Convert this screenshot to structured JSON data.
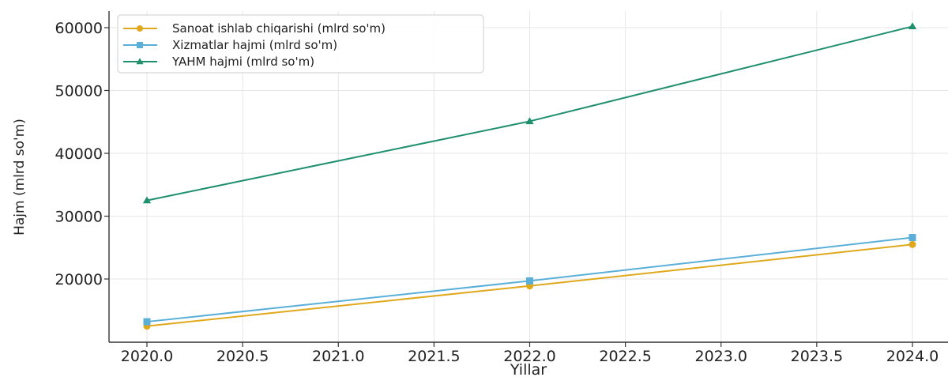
{
  "chart_data": {
    "type": "line",
    "title": "",
    "xlabel": "Yillar",
    "ylabel": "Hajm (mlrd so'm)",
    "xlim": [
      1999.9,
      2024.1
    ],
    "ylim": [
      10000,
      62500
    ],
    "x_ticks": [
      "2020.0",
      "2020.5",
      "2021.0",
      "2021.5",
      "2022.0",
      "2022.5",
      "2023.0",
      "2023.5",
      "2024.0"
    ],
    "y_ticks": [
      "20000",
      "30000",
      "40000",
      "50000",
      "60000"
    ],
    "grid": true,
    "legend_position": "upper-left",
    "x": [
      2020,
      2022,
      2024
    ],
    "series": [
      {
        "name": "Sanoat ishlab chiqarishi (mlrd so'm)",
        "values": [
          12500,
          18900,
          25500
        ],
        "color": "#e0a81c",
        "marker": "circle"
      },
      {
        "name": "Xizmatlar hajmi (mlrd so'm)",
        "values": [
          13200,
          19700,
          26600
        ],
        "color": "#5aafd8",
        "marker": "square"
      },
      {
        "name": "YAHM hajmi (mlrd so'm)",
        "values": [
          32500,
          45100,
          60200
        ],
        "color": "#1f8f6e",
        "marker": "triangle"
      }
    ]
  }
}
